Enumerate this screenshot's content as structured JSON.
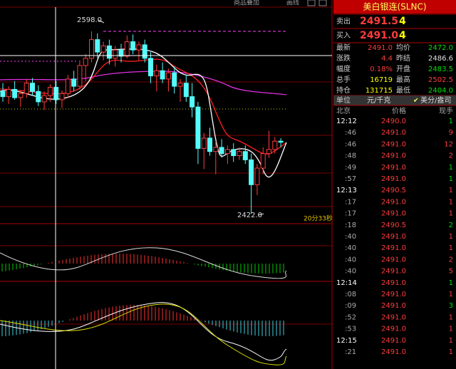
{
  "top_bar": {
    "overlay": "商品叠加",
    "draw_line": "画线"
  },
  "chart": {
    "up_color": "#ff3c3c",
    "down_color": "#54fcfc",
    "annotations": {
      "high": "2598.0",
      "low": "2422.0",
      "countdown": "20分33秒"
    },
    "candles": [
      [
        2540,
        2548,
        2530,
        2535
      ],
      [
        2535,
        2545,
        2528,
        2542
      ],
      [
        2542,
        2550,
        2532,
        2534
      ],
      [
        2534,
        2541,
        2525,
        2538
      ],
      [
        2538,
        2552,
        2534,
        2548
      ],
      [
        2548,
        2553,
        2536,
        2540
      ],
      [
        2540,
        2546,
        2526,
        2530
      ],
      [
        2530,
        2540,
        2522,
        2536
      ],
      [
        2536,
        2547,
        2530,
        2544
      ],
      [
        2544,
        2550,
        2528,
        2532
      ],
      [
        2532,
        2541,
        2524,
        2538
      ],
      [
        2538,
        2556,
        2534,
        2552
      ],
      [
        2552,
        2560,
        2540,
        2545
      ],
      [
        2545,
        2570,
        2542,
        2565
      ],
      [
        2565,
        2576,
        2550,
        2572
      ],
      [
        2572,
        2598,
        2568,
        2590
      ],
      [
        2590,
        2596,
        2572,
        2578
      ],
      [
        2578,
        2588,
        2570,
        2584
      ],
      [
        2584,
        2590,
        2566,
        2572
      ],
      [
        2572,
        2584,
        2564,
        2580
      ],
      [
        2580,
        2586,
        2568,
        2574
      ],
      [
        2574,
        2594,
        2572,
        2588
      ],
      [
        2588,
        2595,
        2576,
        2580
      ],
      [
        2580,
        2588,
        2570,
        2585
      ],
      [
        2585,
        2590,
        2568,
        2572
      ],
      [
        2572,
        2578,
        2548,
        2555
      ],
      [
        2555,
        2566,
        2540,
        2560
      ],
      [
        2560,
        2568,
        2548,
        2552
      ],
      [
        2552,
        2562,
        2540,
        2558
      ],
      [
        2558,
        2564,
        2538,
        2545
      ],
      [
        2545,
        2552,
        2530,
        2548
      ],
      [
        2548,
        2556,
        2530,
        2535
      ],
      [
        2535,
        2548,
        2515,
        2525
      ],
      [
        2525,
        2530,
        2470,
        2485
      ],
      [
        2485,
        2500,
        2465,
        2495
      ],
      [
        2495,
        2505,
        2478,
        2482
      ],
      [
        2482,
        2492,
        2460,
        2486
      ],
      [
        2486,
        2494,
        2476,
        2480
      ],
      [
        2480,
        2488,
        2470,
        2484
      ],
      [
        2484,
        2490,
        2472,
        2478
      ],
      [
        2478,
        2486,
        2474,
        2482
      ],
      [
        2482,
        2488,
        2470,
        2474
      ],
      [
        2474,
        2480,
        2422,
        2450
      ],
      [
        2450,
        2470,
        2440,
        2466
      ],
      [
        2466,
        2486,
        2460,
        2480
      ],
      [
        2480,
        2502,
        2476,
        2484
      ],
      [
        2484,
        2496,
        2480,
        2492
      ],
      [
        2492,
        2495,
        2486,
        2491
      ]
    ]
  },
  "quote": {
    "title": "美白银连(SLNC)",
    "ask_label": "卖出",
    "ask_price": "2491.5",
    "ask_size": "4",
    "bid_label": "买入",
    "bid_price": "2491.0",
    "bid_size": "4"
  },
  "stats": [
    {
      "label": "最新",
      "value": "2491.0",
      "color": "#ff3c3c"
    },
    {
      "label": "均价",
      "value": "2472.0",
      "color": "#00e000"
    },
    {
      "label": "涨跌",
      "value": "4.4",
      "color": "#ff3c3c"
    },
    {
      "label": "昨结",
      "value": "2486.6",
      "color": "#e0e0e0"
    },
    {
      "label": "幅度",
      "value": "0.18%",
      "color": "#ff3c3c"
    },
    {
      "label": "开盘",
      "value": "2483.5",
      "color": "#00e000"
    },
    {
      "label": "总手",
      "value": "16719",
      "color": "#ffff00"
    },
    {
      "label": "最高",
      "value": "2502.5",
      "color": "#ff3c3c"
    },
    {
      "label": "持仓",
      "value": "131715",
      "color": "#ffff00"
    },
    {
      "label": "最低",
      "value": "2404.0",
      "color": "#00e000"
    }
  ],
  "unit": {
    "label": "单位",
    "unit1": "元/千克",
    "unit2": "美分/盎司"
  },
  "trades_header": {
    "time": "北京",
    "price": "价格",
    "volume": "现手"
  },
  "trades": [
    {
      "time": "12:12",
      "price": "2490.0",
      "volume": "1",
      "color": "#00e000"
    },
    {
      "time": ":46",
      "price": "2491.0",
      "volume": "9",
      "color": "#ff3c3c"
    },
    {
      "time": ":46",
      "price": "2491.0",
      "volume": "12",
      "color": "#ff3c3c"
    },
    {
      "time": ":48",
      "price": "2491.0",
      "volume": "2",
      "color": "#ff3c3c"
    },
    {
      "time": ":49",
      "price": "2491.0",
      "volume": "1",
      "color": "#00e000"
    },
    {
      "time": ":57",
      "price": "2491.0",
      "volume": "1",
      "color": "#00e000"
    },
    {
      "time": "12:13",
      "price": "2490.5",
      "volume": "1",
      "color": "#ff3c3c"
    },
    {
      "time": ":17",
      "price": "2491.0",
      "volume": "1",
      "color": "#ff3c3c"
    },
    {
      "time": ":17",
      "price": "2491.0",
      "volume": "1",
      "color": "#ff3c3c"
    },
    {
      "time": ":18",
      "price": "2490.5",
      "volume": "2",
      "color": "#00e000"
    },
    {
      "time": ":40",
      "price": "2491.0",
      "volume": "1",
      "color": "#ff3c3c"
    },
    {
      "time": ":40",
      "price": "2491.0",
      "volume": "1",
      "color": "#ff3c3c"
    },
    {
      "time": ":40",
      "price": "2491.0",
      "volume": "2",
      "color": "#ff3c3c"
    },
    {
      "time": ":40",
      "price": "2491.0",
      "volume": "5",
      "color": "#ff3c3c"
    },
    {
      "time": "12:14",
      "price": "2491.0",
      "volume": "1",
      "color": "#00e000"
    },
    {
      "time": ":08",
      "price": "2491.0",
      "volume": "1",
      "color": "#ff3c3c"
    },
    {
      "time": ":09",
      "price": "2491.0",
      "volume": "3",
      "color": "#00e000"
    },
    {
      "time": ":52",
      "price": "2491.0",
      "volume": "1",
      "color": "#ff3c3c"
    },
    {
      "time": ":53",
      "price": "2491.0",
      "volume": "1",
      "color": "#ff3c3c"
    },
    {
      "time": "12:15",
      "price": "2491.0",
      "volume": "1",
      "color": "#ff3c3c"
    },
    {
      "time": ":21",
      "price": "2491.0",
      "volume": "1",
      "color": "#ff3c3c"
    }
  ]
}
